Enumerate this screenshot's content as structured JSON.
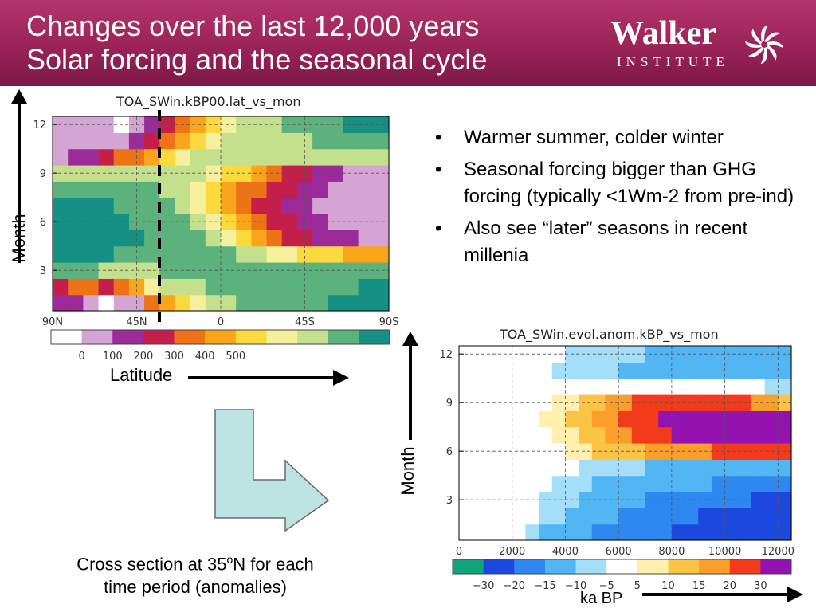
{
  "title": {
    "line1": "Changes over the last 12,000 years",
    "line2": "Solar forcing and the seasonal cycle"
  },
  "logo": {
    "name": "Walker",
    "sub": "INSTITUTE"
  },
  "colors": {
    "header": "#9a2358",
    "arrow_box": "#bde3e3"
  },
  "bullets": [
    "Warmer summer, colder winter",
    "Seasonal forcing bigger than GHG forcing (typically <1Wm-2 from pre-ind)",
    "Also see “later” seasons in recent millenia"
  ],
  "bullet_symbol": "•",
  "labels": {
    "month_left": "Month",
    "latitude": "Latitude",
    "month_right": "Month",
    "ka_bp": "ka BP"
  },
  "caption": {
    "line1_pre": "Cross section at 35",
    "line1_sup": "o",
    "line1_post": "N for each",
    "line2": "time period (anomalies)"
  },
  "chart_data": [
    {
      "type": "heatmap",
      "title": "TOA_SWin.kBP00.lat_vs_mon",
      "x_tick_labels": [
        "90N",
        "45N",
        "0",
        "45S",
        "90S"
      ],
      "y_tick_labels": [
        "3",
        "6",
        "9",
        "12"
      ],
      "y_ticks": [
        3,
        6,
        9,
        12
      ],
      "ylim": [
        0.5,
        12.5
      ],
      "colorbar_labels": [
        "0",
        "100",
        "200",
        "300",
        "400",
        "500"
      ],
      "colorbar_values": [
        0,
        100,
        200,
        300,
        400,
        500
      ],
      "colorbar_colors": [
        "#ffffff",
        "#d3a4d4",
        "#9c2a99",
        "#c41f4a",
        "#ee7216",
        "#faa51a",
        "#fcd93f",
        "#f4f09c",
        "#c4e08c",
        "#5bb27c",
        "#149084"
      ],
      "levels": [
        [
          2,
          2,
          1,
          0,
          1,
          1,
          4,
          5,
          6,
          7,
          8,
          8,
          9,
          9,
          9,
          9,
          9,
          9,
          10,
          10,
          10,
          10
        ],
        [
          3,
          4,
          4,
          3,
          4,
          5,
          7,
          8,
          8,
          8,
          9,
          9,
          9,
          9,
          9,
          9,
          9,
          9,
          9,
          9,
          10,
          10
        ],
        [
          9,
          9,
          9,
          8,
          8,
          8,
          8,
          9,
          9,
          9,
          9,
          9,
          9,
          9,
          9,
          9,
          9,
          9,
          9,
          9,
          9,
          9
        ],
        [
          10,
          10,
          10,
          10,
          9,
          9,
          9,
          9,
          9,
          9,
          9,
          9,
          8,
          8,
          7,
          7,
          6,
          6,
          6,
          5,
          5,
          5
        ],
        [
          10,
          10,
          10,
          10,
          10,
          10,
          9,
          9,
          9,
          9,
          8,
          7,
          6,
          5,
          4,
          3,
          3,
          2,
          2,
          2,
          1,
          1
        ],
        [
          10,
          10,
          10,
          10,
          10,
          9,
          9,
          9,
          9,
          8,
          7,
          6,
          5,
          4,
          3,
          3,
          2,
          2,
          1,
          1,
          1,
          1
        ],
        [
          10,
          10,
          10,
          10,
          9,
          9,
          9,
          9,
          8,
          7,
          6,
          5,
          4,
          3,
          3,
          2,
          2,
          1,
          1,
          1,
          1,
          1
        ],
        [
          9,
          9,
          9,
          9,
          9,
          9,
          9,
          8,
          8,
          7,
          6,
          5,
          4,
          4,
          3,
          3,
          2,
          2,
          1,
          1,
          1,
          1
        ],
        [
          8,
          8,
          8,
          8,
          8,
          8,
          8,
          8,
          8,
          8,
          7,
          6,
          6,
          5,
          4,
          3,
          3,
          2,
          2,
          1,
          1,
          1
        ],
        [
          1,
          2,
          2,
          3,
          4,
          4,
          5,
          6,
          7,
          8,
          8,
          8,
          8,
          8,
          8,
          8,
          8,
          8,
          8,
          8,
          8,
          8
        ],
        [
          1,
          1,
          1,
          1,
          1,
          2,
          3,
          4,
          5,
          6,
          7,
          8,
          8,
          8,
          8,
          8,
          8,
          9,
          9,
          9,
          9,
          9
        ],
        [
          1,
          1,
          1,
          1,
          0,
          1,
          2,
          3,
          4,
          5,
          6,
          7,
          8,
          8,
          8,
          9,
          9,
          9,
          9,
          10,
          10,
          10
        ]
      ]
    },
    {
      "type": "heatmap",
      "title": "TOA_SWin.evol.anom.kBP_vs_mon",
      "x_tick_labels": [
        "0",
        "2000",
        "4000",
        "6000",
        "8000",
        "10000",
        "12000"
      ],
      "x_ticks": [
        0,
        2000,
        4000,
        6000,
        8000,
        10000,
        12000
      ],
      "xlim": [
        0,
        12500
      ],
      "y_tick_labels": [
        "3",
        "6",
        "9",
        "12"
      ],
      "y_ticks": [
        3,
        6,
        9,
        12
      ],
      "ylim": [
        0.5,
        12.5
      ],
      "colorbar_labels": [
        "−30",
        "−20",
        "−15",
        "−10",
        "−5",
        "5",
        "10",
        "15",
        "20",
        "30"
      ],
      "colorbar_values": [
        -30,
        -20,
        -15,
        -10,
        -5,
        5,
        10,
        15,
        20,
        30
      ],
      "colorbar_colors": [
        "#11a57e",
        "#1d48e0",
        "#2f88ef",
        "#52b6f4",
        "#a4def8",
        "#ffffff",
        "#fff0ae",
        "#fcc444",
        "#fb9e2a",
        "#f33a1a",
        "#9412b0"
      ],
      "levels": [
        [
          5,
          5,
          5,
          5,
          5,
          4,
          3,
          3,
          3,
          3,
          2,
          2,
          2,
          2,
          2,
          2,
          1,
          1,
          1,
          1,
          1,
          1,
          1,
          1,
          1
        ],
        [
          5,
          5,
          5,
          5,
          5,
          5,
          4,
          4,
          3,
          3,
          3,
          3,
          2,
          2,
          2,
          2,
          2,
          2,
          1,
          1,
          1,
          1,
          1,
          1,
          1
        ],
        [
          5,
          5,
          5,
          5,
          5,
          5,
          4,
          4,
          4,
          3,
          3,
          3,
          3,
          3,
          2,
          2,
          2,
          2,
          2,
          2,
          2,
          2,
          1,
          1,
          1
        ],
        [
          5,
          5,
          5,
          5,
          5,
          5,
          5,
          4,
          4,
          4,
          3,
          3,
          3,
          3,
          3,
          3,
          3,
          3,
          3,
          2,
          2,
          2,
          2,
          2,
          2
        ],
        [
          5,
          5,
          5,
          5,
          5,
          5,
          5,
          5,
          5,
          4,
          4,
          4,
          4,
          4,
          3,
          3,
          3,
          3,
          3,
          3,
          3,
          3,
          3,
          3,
          3
        ],
        [
          5,
          5,
          5,
          5,
          5,
          5,
          5,
          5,
          6,
          6,
          7,
          7,
          7,
          7,
          8,
          8,
          8,
          8,
          8,
          9,
          9,
          9,
          9,
          9,
          9
        ],
        [
          5,
          5,
          5,
          5,
          5,
          5,
          5,
          6,
          6,
          7,
          7,
          8,
          8,
          9,
          9,
          9,
          10,
          10,
          10,
          10,
          10,
          10,
          10,
          10,
          10
        ],
        [
          5,
          5,
          5,
          5,
          5,
          5,
          6,
          6,
          7,
          7,
          8,
          8,
          9,
          9,
          9,
          10,
          10,
          10,
          10,
          10,
          10,
          10,
          10,
          10,
          10
        ],
        [
          5,
          5,
          5,
          5,
          5,
          5,
          5,
          6,
          6,
          7,
          7,
          8,
          8,
          9,
          9,
          9,
          9,
          9,
          9,
          9,
          9,
          9,
          8,
          8,
          7
        ],
        [
          5,
          5,
          5,
          5,
          5,
          5,
          5,
          5,
          5,
          5,
          5,
          5,
          5,
          5,
          5,
          5,
          5,
          5,
          5,
          5,
          5,
          5,
          5,
          4,
          4
        ],
        [
          5,
          5,
          5,
          5,
          5,
          5,
          5,
          4,
          4,
          4,
          4,
          4,
          3,
          3,
          3,
          3,
          3,
          3,
          3,
          3,
          3,
          3,
          3,
          3,
          3
        ],
        [
          5,
          5,
          5,
          5,
          5,
          5,
          5,
          5,
          4,
          4,
          4,
          4,
          4,
          4,
          3,
          3,
          3,
          3,
          3,
          3,
          3,
          3,
          3,
          3,
          3
        ]
      ]
    }
  ]
}
